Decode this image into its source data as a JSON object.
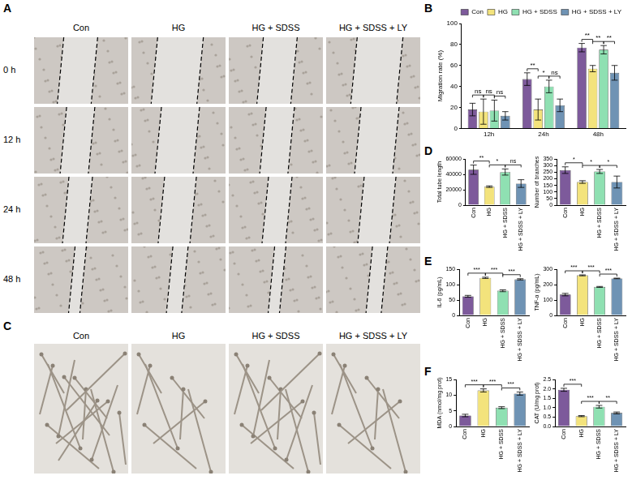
{
  "image_panels": [
    {
      "panel": "A",
      "columns": [
        "Con",
        "HG",
        "HG + SDSS",
        "HG + SDSS + LY"
      ],
      "rows": [
        "0 h",
        "12 h",
        "24 h",
        "48 h"
      ]
    },
    {
      "panel": "C",
      "columns": [
        "Con",
        "HG",
        "HG + SDSS",
        "HG + SDSS + LY"
      ]
    }
  ],
  "chart_data": [
    {
      "panel": "B",
      "type": "bar",
      "ylabel": "Migration rate (%)",
      "categories": [
        "12h",
        "24h",
        "48h"
      ],
      "series": [
        {
          "name": "Con",
          "color": "#7d5a9b",
          "values": [
            18,
            47,
            77
          ],
          "errors": [
            6,
            6,
            4
          ]
        },
        {
          "name": "HG",
          "color": "#f3e37c",
          "values": [
            16,
            18,
            57
          ],
          "errors": [
            12,
            10,
            3
          ]
        },
        {
          "name": "HG + SDSS",
          "color": "#8fe0b2",
          "values": [
            17,
            40,
            75
          ],
          "errors": [
            10,
            6,
            4
          ]
        },
        {
          "name": "HG + SDSS + LY",
          "color": "#6f93b4",
          "values": [
            12,
            22,
            53
          ],
          "errors": [
            4,
            6,
            7
          ]
        }
      ],
      "ylim": [
        0,
        100
      ],
      "yticks": [
        0,
        20,
        40,
        60,
        80,
        100
      ],
      "grid": false,
      "legend": "top",
      "annotations": [
        {
          "category": "12h",
          "from": "Con",
          "to": "HG",
          "label": "ns"
        },
        {
          "category": "12h",
          "from": "HG",
          "to": "HG + SDSS",
          "label": "ns"
        },
        {
          "category": "12h",
          "from": "HG + SDSS",
          "to": "HG + SDSS + LY",
          "label": "ns"
        },
        {
          "category": "24h",
          "from": "Con",
          "to": "HG",
          "label": "**"
        },
        {
          "category": "24h",
          "from": "HG",
          "to": "HG + SDSS",
          "label": "*"
        },
        {
          "category": "24h",
          "from": "HG + SDSS",
          "to": "HG + SDSS + LY",
          "label": "ns"
        },
        {
          "category": "48h",
          "from": "Con",
          "to": "HG",
          "label": "**"
        },
        {
          "category": "48h",
          "from": "HG",
          "to": "HG + SDSS",
          "label": "**"
        },
        {
          "category": "48h",
          "from": "HG + SDSS",
          "to": "HG + SDSS + LY",
          "label": "**"
        }
      ]
    },
    {
      "panel": "D",
      "type": "bar",
      "ylabel": "Total tube length",
      "categories": [
        "Con",
        "HG",
        "HG + SDSS",
        "HG + SDSS + LY"
      ],
      "values": [
        46000,
        24000,
        43000,
        28000
      ],
      "errors": [
        6000,
        1000,
        4000,
        5000
      ],
      "colors": [
        "#7d5a9b",
        "#f3e37c",
        "#8fe0b2",
        "#6f93b4"
      ],
      "ylim": [
        0,
        60000
      ],
      "yticks": [
        0,
        20000,
        40000,
        60000
      ],
      "grid": false,
      "annotations": [
        {
          "from": "Con",
          "to": "HG",
          "label": "**"
        },
        {
          "from": "HG",
          "to": "HG + SDSS",
          "label": "*"
        },
        {
          "from": "HG + SDSS",
          "to": "HG + SDSS + LY",
          "label": "ns"
        }
      ]
    },
    {
      "type": "bar",
      "ylabel": "Number of branches",
      "categories": [
        "Con",
        "HG",
        "HG + SDSS",
        "HG + SDSS + LY"
      ],
      "values": [
        265,
        175,
        255,
        175
      ],
      "errors": [
        25,
        10,
        15,
        45
      ],
      "colors": [
        "#7d5a9b",
        "#f3e37c",
        "#8fe0b2",
        "#6f93b4"
      ],
      "ylim": [
        0,
        350
      ],
      "yticks": [
        0,
        50,
        100,
        150,
        200,
        250,
        300,
        350
      ],
      "grid": false,
      "annotations": [
        {
          "from": "Con",
          "to": "HG",
          "label": "*"
        },
        {
          "from": "HG",
          "to": "HG + SDSS",
          "label": "*"
        },
        {
          "from": "HG + SDSS",
          "to": "HG + SDSS + LY",
          "label": "*"
        }
      ]
    },
    {
      "panel": "E",
      "type": "bar",
      "ylabel": "IL-6 (pg/mL)",
      "categories": [
        "Con",
        "HG",
        "HG + SDSS",
        "HG + SDSS + LY"
      ],
      "values": [
        62,
        122,
        80,
        117
      ],
      "errors": [
        3,
        2,
        3,
        2
      ],
      "colors": [
        "#7d5a9b",
        "#f3e37c",
        "#8fe0b2",
        "#6f93b4"
      ],
      "ylim": [
        0,
        150
      ],
      "yticks": [
        0,
        50,
        100,
        150
      ],
      "grid": false,
      "annotations": [
        {
          "from": "Con",
          "to": "HG",
          "label": "***"
        },
        {
          "from": "HG",
          "to": "HG + SDSS",
          "label": "***"
        },
        {
          "from": "HG + SDSS",
          "to": "HG + SDSS + LY",
          "label": "***"
        }
      ]
    },
    {
      "type": "bar",
      "ylabel": "TNF-α (pg/mL)",
      "categories": [
        "Con",
        "HG",
        "HG + SDSS",
        "HG + SDSS + LY"
      ],
      "values": [
        135,
        260,
        185,
        240
      ],
      "errors": [
        8,
        3,
        3,
        2
      ],
      "colors": [
        "#7d5a9b",
        "#f3e37c",
        "#8fe0b2",
        "#6f93b4"
      ],
      "ylim": [
        0,
        300
      ],
      "yticks": [
        0,
        100,
        200,
        300
      ],
      "grid": false,
      "annotations": [
        {
          "from": "Con",
          "to": "HG",
          "label": "***"
        },
        {
          "from": "HG",
          "to": "HG + SDSS",
          "label": "***"
        },
        {
          "from": "HG + SDSS",
          "to": "HG + SDSS + LY",
          "label": "***"
        }
      ]
    },
    {
      "panel": "F",
      "type": "bar",
      "ylabel": "MDA (nmol/mg prot)",
      "categories": [
        "Con",
        "HG",
        "HG + SDSS",
        "HG + SDSS + LY"
      ],
      "values": [
        3.5,
        11.5,
        6,
        10.5
      ],
      "errors": [
        0.4,
        0.5,
        0.3,
        0.5
      ],
      "colors": [
        "#7d5a9b",
        "#f3e37c",
        "#8fe0b2",
        "#6f93b4"
      ],
      "ylim": [
        0,
        15
      ],
      "yticks": [
        0,
        5,
        10,
        15
      ],
      "grid": false,
      "annotations": [
        {
          "from": "Con",
          "to": "HG",
          "label": "***"
        },
        {
          "from": "HG",
          "to": "HG + SDSS",
          "label": "***"
        },
        {
          "from": "HG + SDSS",
          "to": "HG + SDSS + LY",
          "label": "***"
        }
      ]
    },
    {
      "type": "bar",
      "ylabel": "CAT (U/mg prot)",
      "categories": [
        "Con",
        "HG",
        "HG + SDSS",
        "HG + SDSS + LY"
      ],
      "values": [
        1.95,
        0.55,
        1.05,
        0.72
      ],
      "errors": [
        0.08,
        0.03,
        0.07,
        0.05
      ],
      "colors": [
        "#7d5a9b",
        "#f3e37c",
        "#8fe0b2",
        "#6f93b4"
      ],
      "ylim": [
        0,
        2.5
      ],
      "yticks": [
        {
          "value": 0,
          "label": "0.0"
        },
        {
          "value": 0.5,
          "label": "0.5"
        },
        {
          "value": 1,
          "label": "1.0"
        },
        {
          "value": 1.5,
          "label": "1.5"
        },
        {
          "value": 2,
          "label": "2.0"
        },
        {
          "value": 2.5,
          "label": "2.5"
        }
      ],
      "grid": false,
      "annotations": [
        {
          "from": "Con",
          "to": "HG",
          "label": "***"
        },
        {
          "from": "HG",
          "to": "HG + SDSS",
          "label": "***"
        },
        {
          "from": "HG + SDSS",
          "to": "HG + SDSS + LY",
          "label": "**"
        }
      ]
    }
  ]
}
